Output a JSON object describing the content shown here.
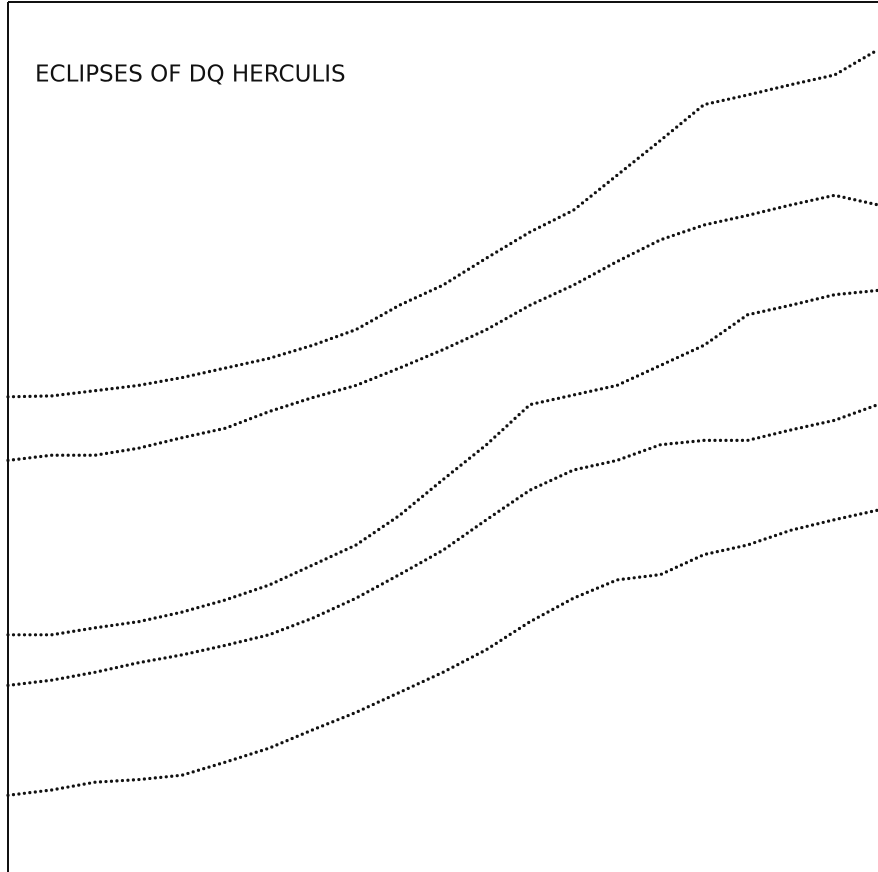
{
  "chart_data": {
    "type": "line",
    "title": "ECLIPSES OF DQ HERCULIS",
    "x": [
      0,
      5,
      10,
      15,
      20,
      25,
      30,
      35,
      40,
      45,
      50,
      55,
      60,
      65,
      70,
      75,
      80,
      85,
      90,
      95,
      100
    ],
    "xlim": [
      0,
      100
    ],
    "ylim": [
      0,
      100
    ],
    "series": [
      {
        "color": "#111111",
        "values": [
          54.5,
          54.6,
          55.2,
          55.8,
          56.7,
          57.8,
          58.9,
          60.4,
          62.2,
          65.0,
          67.3,
          70.4,
          73.4,
          75.9,
          79.9,
          83.9,
          88.0,
          89.1,
          90.3,
          91.4,
          94.3
        ]
      },
      {
        "color": "#111111",
        "values": [
          47.2,
          47.8,
          47.8,
          48.6,
          49.8,
          50.9,
          52.8,
          54.4,
          55.8,
          57.8,
          59.9,
          62.2,
          65.0,
          67.3,
          70.0,
          72.5,
          74.2,
          75.3,
          76.5,
          77.6,
          76.5
        ]
      },
      {
        "color": "#111111",
        "values": [
          27.2,
          27.2,
          28.0,
          28.7,
          29.8,
          31.2,
          32.9,
          35.2,
          37.5,
          40.9,
          45.0,
          49.0,
          53.6,
          54.7,
          55.8,
          58.1,
          60.4,
          63.9,
          65.0,
          66.2,
          66.7
        ]
      },
      {
        "color": "#111111",
        "values": [
          21.4,
          22.0,
          22.9,
          24.0,
          24.9,
          26.0,
          27.2,
          29.1,
          31.4,
          34.1,
          36.9,
          40.4,
          43.8,
          46.1,
          47.2,
          49.0,
          49.5,
          49.5,
          50.7,
          51.8,
          53.6
        ]
      },
      {
        "color": "#111111",
        "values": [
          8.8,
          9.4,
          10.3,
          10.6,
          11.1,
          12.6,
          14.2,
          16.3,
          18.3,
          20.6,
          22.9,
          25.5,
          28.7,
          31.4,
          33.5,
          34.1,
          36.4,
          37.5,
          39.2,
          40.4,
          41.5
        ]
      }
    ]
  }
}
